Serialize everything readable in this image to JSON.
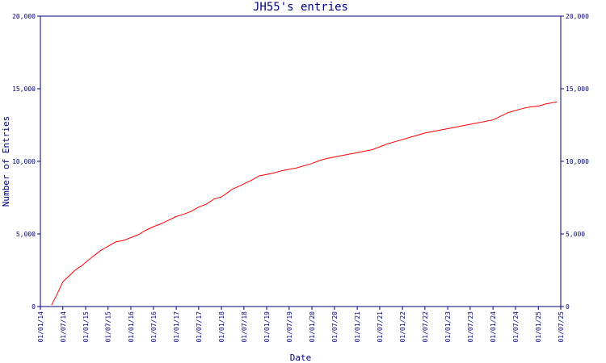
{
  "chart_data": {
    "type": "line",
    "title": "JH55's entries",
    "xlabel": "Date",
    "ylabel": "Number of Entries",
    "x_ticks": [
      "01/01/14",
      "01/07/14",
      "01/01/15",
      "01/07/15",
      "01/01/16",
      "01/07/16",
      "01/01/17",
      "01/07/17",
      "01/01/18",
      "01/07/18",
      "01/01/19",
      "01/07/19",
      "01/01/20",
      "01/07/20",
      "01/01/21",
      "01/07/21",
      "01/01/22",
      "01/07/22",
      "01/01/23",
      "01/07/23",
      "01/01/24",
      "01/07/24",
      "01/01/25",
      "01/07/25"
    ],
    "y_ticks": [
      "0",
      "5,000",
      "10,000",
      "15,000",
      "20,000"
    ],
    "ylim": [
      0,
      20000
    ],
    "grid": false,
    "colors": {
      "line": "#ff0000",
      "axis": "#000080",
      "text": "#000080"
    },
    "series": [
      {
        "x": [
          "2014-04-01",
          "2014-05-01",
          "2014-06-01",
          "2014-07-01",
          "2014-08-01",
          "2014-09-01",
          "2014-10-01",
          "2014-11-01",
          "2014-12-01",
          "2015-01-01",
          "2015-02-01",
          "2015-03-01",
          "2015-04-01",
          "2015-05-01",
          "2015-06-01",
          "2015-07-01",
          "2015-09-01",
          "2015-11-01",
          "2016-01-01",
          "2016-03-01",
          "2016-05-01",
          "2016-07-01",
          "2016-09-01",
          "2016-11-01",
          "2017-01-01",
          "2017-03-01",
          "2017-05-01",
          "2017-07-01",
          "2017-09-01",
          "2017-11-01",
          "2018-01-01",
          "2018-03-01",
          "2018-04-01",
          "2018-05-01",
          "2018-07-01",
          "2018-09-01",
          "2018-11-01",
          "2019-01-01",
          "2019-03-01",
          "2019-05-01",
          "2019-07-01",
          "2019-09-01",
          "2019-11-01",
          "2020-01-01",
          "2020-03-01",
          "2020-05-01",
          "2020-07-01",
          "2020-09-01",
          "2020-11-01",
          "2021-01-01",
          "2021-03-01",
          "2021-05-01",
          "2021-07-01",
          "2021-09-01",
          "2021-11-01",
          "2022-01-01",
          "2022-03-01",
          "2022-05-01",
          "2022-07-01",
          "2022-09-01",
          "2022-11-01",
          "2023-01-01",
          "2023-03-01",
          "2023-05-01",
          "2023-07-01",
          "2023-09-01",
          "2023-11-01",
          "2024-01-01",
          "2024-03-01",
          "2024-05-01",
          "2024-07-01",
          "2024-09-01",
          "2024-11-01",
          "2025-01-01",
          "2025-03-01",
          "2025-05-01",
          "2025-06-01"
        ],
        "y": [
          100,
          600,
          1150,
          1700,
          1950,
          2200,
          2450,
          2650,
          2800,
          3050,
          3250,
          3450,
          3650,
          3850,
          4000,
          4150,
          4450,
          4550,
          4750,
          4950,
          5250,
          5500,
          5700,
          5950,
          6200,
          6350,
          6550,
          6850,
          7050,
          7400,
          7550,
          7900,
          8100,
          8200,
          8450,
          8700,
          9000,
          9100,
          9200,
          9350,
          9450,
          9550,
          9700,
          9850,
          10050,
          10200,
          10300,
          10400,
          10500,
          10600,
          10700,
          10800,
          11000,
          11200,
          11350,
          11500,
          11650,
          11800,
          11950,
          12050,
          12150,
          12250,
          12350,
          12450,
          12550,
          12650,
          12750,
          12850,
          13100,
          13350,
          13500,
          13650,
          13750,
          13800,
          13950,
          14050,
          14100
        ]
      }
    ]
  }
}
